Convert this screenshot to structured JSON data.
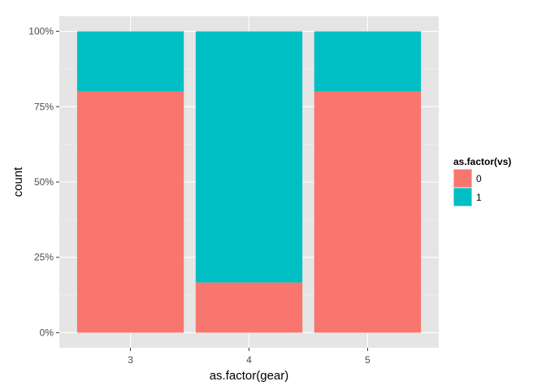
{
  "chart_data": {
    "type": "bar",
    "stacked": true,
    "normalized": true,
    "categories": [
      "3",
      "4",
      "5"
    ],
    "series": [
      {
        "name": "0",
        "color": "#F8766D",
        "values": [
          0.8,
          0.1667,
          0.8
        ]
      },
      {
        "name": "1",
        "color": "#00BFC4",
        "values": [
          0.2,
          0.8333,
          0.2
        ]
      }
    ],
    "xlabel": "as.factor(gear)",
    "ylabel": "count",
    "ylim": [
      0,
      1
    ],
    "y_ticks": [
      {
        "value": 0,
        "label": "0%"
      },
      {
        "value": 0.25,
        "label": "25%"
      },
      {
        "value": 0.5,
        "label": "50%"
      },
      {
        "value": 0.75,
        "label": "75%"
      },
      {
        "value": 1,
        "label": "100%"
      }
    ],
    "legend": {
      "title": "as.factor(vs)",
      "placement": "right"
    },
    "grid": true,
    "panel_background": "#E5E5E5",
    "grid_color": "#FFFFFF"
  }
}
